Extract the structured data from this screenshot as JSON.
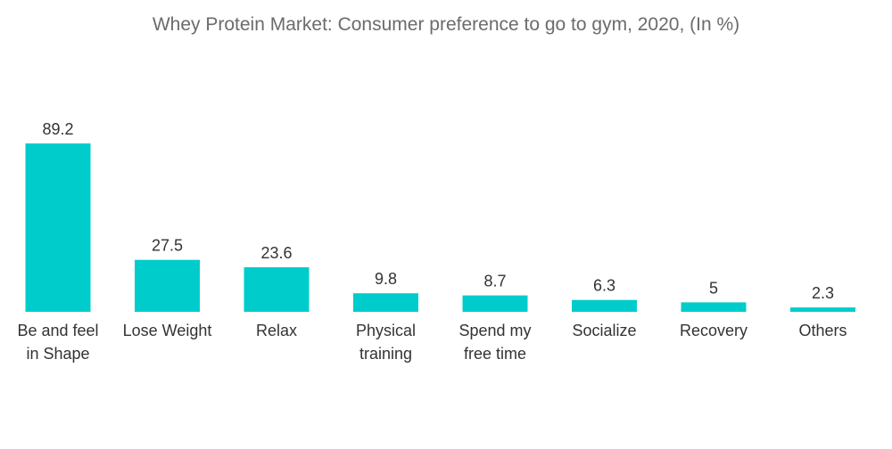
{
  "chart_data": {
    "type": "bar",
    "title": "Whey Protein Market: Consumer preference to go to gym, 2020, (In %)",
    "categories": [
      "Be and feel in Shape",
      "Lose Weight",
      "Relax",
      "Physical training",
      "Spend my free time",
      "Socialize",
      "Recovery",
      "Others"
    ],
    "category_lines": [
      [
        "Be and feel",
        "in Shape"
      ],
      [
        "Lose Weight"
      ],
      [
        "Relax"
      ],
      [
        "Physical",
        "training"
      ],
      [
        "Spend my",
        "free time"
      ],
      [
        "Socialize"
      ],
      [
        "Recovery"
      ],
      [
        "Others"
      ]
    ],
    "values": [
      89.2,
      27.5,
      23.6,
      9.8,
      8.7,
      6.3,
      5,
      2.3
    ],
    "value_labels": [
      "89.2",
      "27.5",
      "23.6",
      "9.8",
      "8.7",
      "6.3",
      "5",
      "2.3"
    ],
    "xlabel": "",
    "ylabel": "",
    "ylim": [
      0,
      89.2
    ],
    "grid": false,
    "legend": "none",
    "bar_color": "#00cccc"
  }
}
